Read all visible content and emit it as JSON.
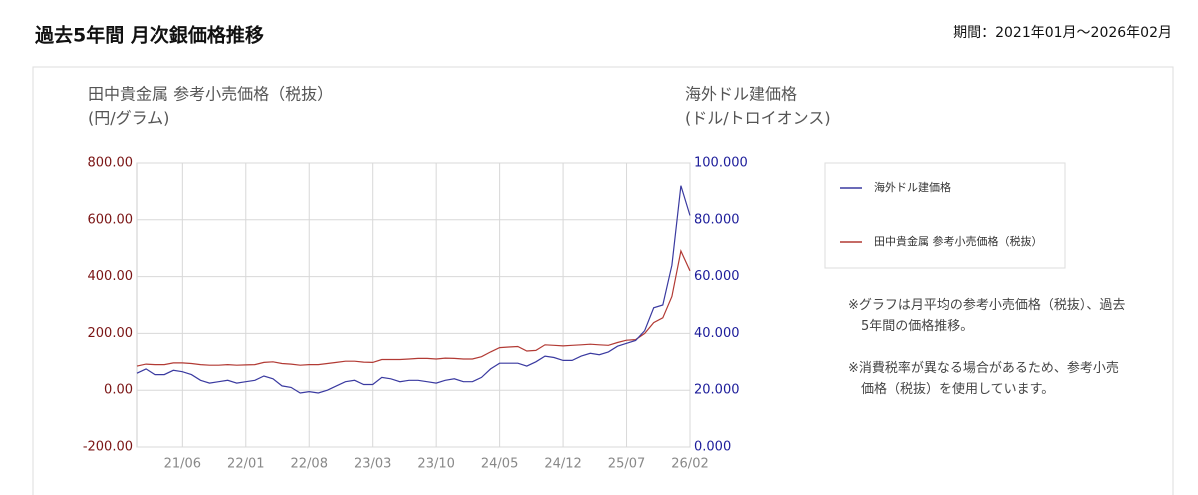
{
  "chart_data": {
    "type": "line",
    "title": "過去5年間 月次銀価格推移",
    "subtitle": "期間：2021年01月〜2026年02月",
    "ylabel": [
      "田中貴金属 参考小売価格（税抜）",
      "(円/グラム)"
    ],
    "y2label": [
      "海外ドル建価格",
      "(ドル/トロイオンス)"
    ],
    "categories": [
      null,
      null,
      null,
      null,
      null,
      "21/06",
      null,
      null,
      null,
      null,
      null,
      null,
      "22/01",
      null,
      null,
      null,
      null,
      null,
      null,
      "22/08",
      null,
      null,
      null,
      null,
      null,
      null,
      "23/03",
      null,
      null,
      null,
      null,
      null,
      null,
      "23/10",
      null,
      null,
      null,
      null,
      null,
      null,
      "24/05",
      null,
      null,
      null,
      null,
      null,
      null,
      "24/12",
      null,
      null,
      null,
      null,
      null,
      null,
      "25/07",
      null,
      null,
      null,
      null,
      null,
      null,
      "26/02"
    ],
    "series": [
      {
        "name": "海外ドル建価格",
        "color": "#3a3aa0",
        "axis": "y2",
        "values": [
          26,
          27.5,
          25.5,
          25.5,
          27,
          26.5,
          25.5,
          23.5,
          22.5,
          23,
          23.5,
          22.5,
          23,
          23.5,
          25,
          24,
          21.5,
          21,
          19,
          19.5,
          19,
          20,
          21.5,
          23,
          23.5,
          22,
          22,
          24.5,
          24,
          23,
          23.5,
          23.5,
          23,
          22.5,
          23.5,
          24,
          23,
          23,
          24.5,
          27.5,
          29.5,
          29.5,
          29.5,
          28.5,
          30,
          32,
          31.5,
          30.5,
          30.5,
          32,
          33,
          32.5,
          33.5,
          35.5,
          36.5,
          37.5,
          41,
          49,
          50,
          64,
          92,
          81.5
        ]
      },
      {
        "name": "田中貴金属 参考小売価格（税抜）",
        "color": "#b23a34",
        "values": [
          85,
          92,
          90,
          90,
          96,
          96,
          94,
          90,
          88,
          88,
          90,
          88,
          89,
          90,
          98,
          100,
          94,
          92,
          88,
          90,
          90,
          94,
          98,
          102,
          102,
          99,
          98,
          108,
          108,
          108,
          110,
          112,
          112,
          110,
          113,
          112,
          110,
          110,
          118,
          135,
          150,
          152,
          154,
          138,
          140,
          160,
          158,
          156,
          158,
          160,
          162,
          160,
          158,
          168,
          176,
          178,
          200,
          238,
          255,
          330,
          490,
          420
        ]
      }
    ],
    "ylim": [
      -200,
      800
    ],
    "yticks": [
      {
        "value": -200,
        "label": "-200.00"
      },
      {
        "value": 0,
        "label": "0.00"
      },
      {
        "value": 200,
        "label": "200.00"
      },
      {
        "value": 400,
        "label": "400.00"
      },
      {
        "value": 600,
        "label": "600.00"
      },
      {
        "value": 800,
        "label": "800.00"
      }
    ],
    "y2lim": [
      0,
      100
    ],
    "y2ticks": [
      {
        "value": 0,
        "label": "0.000"
      },
      {
        "value": 20,
        "label": "20.000"
      },
      {
        "value": 40,
        "label": "40.000"
      },
      {
        "value": 60,
        "label": "60.000"
      },
      {
        "value": 80,
        "label": "80.000"
      },
      {
        "value": 100,
        "label": "100.000"
      }
    ],
    "grid": true,
    "legend": "right",
    "notes": [
      "※グラフは月平均の参考小売価格（税抜）、過去5年間の価格推移。",
      "※消費税率が異なる場合があるため、参考小売価格（税抜）を使用しています。"
    ]
  }
}
